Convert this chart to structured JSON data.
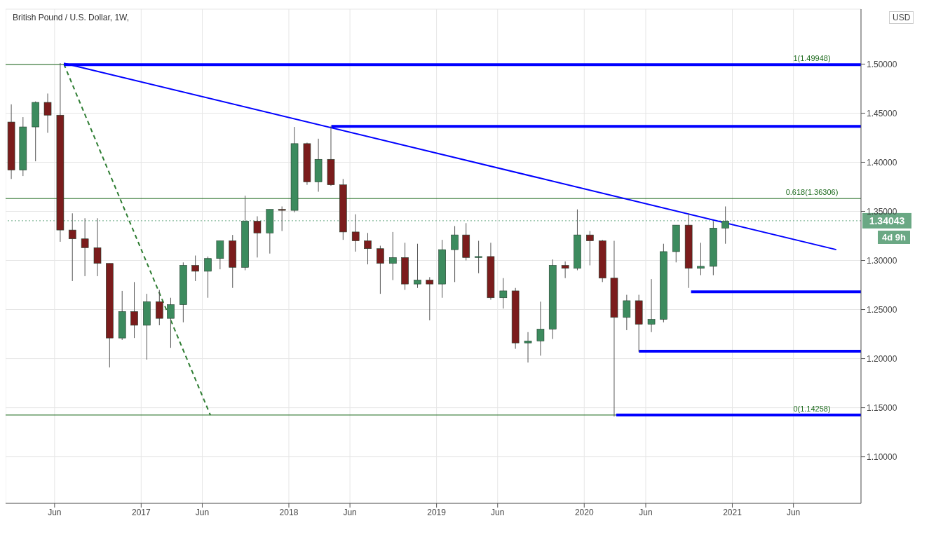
{
  "chart_data": {
    "type": "candlestick",
    "title": "British Pound / U.S. Dollar, 1W,",
    "ylabel": "USD",
    "x": [
      "2016-02-15",
      "2016-03-15",
      "2016-04-15",
      "2016-05-15",
      "2016-06-15",
      "2016-07-15",
      "2016-08-15",
      "2016-09-15",
      "2016-10-15",
      "2016-11-15",
      "2016-12-15",
      "2017-01-15",
      "2017-02-15",
      "2017-03-15",
      "2017-04-15",
      "2017-05-15",
      "2017-06-15",
      "2017-07-15",
      "2017-08-15",
      "2017-09-15",
      "2017-10-15",
      "2017-11-15",
      "2017-12-15",
      "2018-01-15",
      "2018-02-15",
      "2018-03-15",
      "2018-04-15",
      "2018-05-15",
      "2018-06-15",
      "2018-07-15",
      "2018-08-15",
      "2018-09-15",
      "2018-10-15",
      "2018-11-15",
      "2018-12-15",
      "2019-01-15",
      "2019-02-15",
      "2019-03-15",
      "2019-04-15",
      "2019-05-15",
      "2019-06-15",
      "2019-07-15",
      "2019-08-15",
      "2019-09-15",
      "2019-10-15",
      "2019-11-15",
      "2019-12-15",
      "2020-01-15",
      "2020-02-15",
      "2020-03-15",
      "2020-04-15",
      "2020-05-15",
      "2020-06-15",
      "2020-07-15",
      "2020-08-15",
      "2020-09-15",
      "2020-10-15",
      "2020-11-15",
      "2020-12-15"
    ],
    "ohlc": [
      [
        1.441,
        1.459,
        1.383,
        1.392
      ],
      [
        1.392,
        1.446,
        1.386,
        1.436
      ],
      [
        1.436,
        1.462,
        1.401,
        1.461
      ],
      [
        1.461,
        1.47,
        1.43,
        1.448
      ],
      [
        1.448,
        1.501,
        1.319,
        1.331
      ],
      [
        1.331,
        1.348,
        1.279,
        1.322
      ],
      [
        1.322,
        1.343,
        1.284,
        1.313
      ],
      [
        1.313,
        1.343,
        1.284,
        1.297
      ],
      [
        1.297,
        1.297,
        1.191,
        1.221
      ],
      [
        1.221,
        1.269,
        1.219,
        1.248
      ],
      [
        1.248,
        1.278,
        1.221,
        1.234
      ],
      [
        1.234,
        1.266,
        1.199,
        1.258
      ],
      [
        1.258,
        1.27,
        1.234,
        1.241
      ],
      [
        1.241,
        1.262,
        1.211,
        1.255
      ],
      [
        1.255,
        1.298,
        1.237,
        1.295
      ],
      [
        1.295,
        1.305,
        1.279,
        1.289
      ],
      [
        1.289,
        1.304,
        1.262,
        1.302
      ],
      [
        1.302,
        1.32,
        1.291,
        1.32
      ],
      [
        1.32,
        1.326,
        1.272,
        1.293
      ],
      [
        1.293,
        1.366,
        1.29,
        1.34
      ],
      [
        1.34,
        1.345,
        1.303,
        1.328
      ],
      [
        1.328,
        1.352,
        1.307,
        1.352
      ],
      [
        1.352,
        1.355,
        1.33,
        1.351
      ],
      [
        1.351,
        1.436,
        1.349,
        1.419
      ],
      [
        1.419,
        1.42,
        1.377,
        1.38
      ],
      [
        1.38,
        1.424,
        1.37,
        1.403
      ],
      [
        1.403,
        1.437,
        1.376,
        1.377
      ],
      [
        1.377,
        1.383,
        1.321,
        1.329
      ],
      [
        1.329,
        1.347,
        1.309,
        1.32
      ],
      [
        1.32,
        1.328,
        1.296,
        1.312
      ],
      [
        1.312,
        1.315,
        1.266,
        1.297
      ],
      [
        1.297,
        1.329,
        1.28,
        1.303
      ],
      [
        1.303,
        1.318,
        1.27,
        1.276
      ],
      [
        1.276,
        1.317,
        1.272,
        1.28
      ],
      [
        1.28,
        1.283,
        1.239,
        1.276
      ],
      [
        1.276,
        1.321,
        1.262,
        1.311
      ],
      [
        1.311,
        1.335,
        1.278,
        1.326
      ],
      [
        1.326,
        1.338,
        1.3,
        1.303
      ],
      [
        1.303,
        1.32,
        1.287,
        1.304
      ],
      [
        1.304,
        1.318,
        1.26,
        1.262
      ],
      [
        1.262,
        1.282,
        1.251,
        1.269
      ],
      [
        1.269,
        1.272,
        1.21,
        1.216
      ],
      [
        1.216,
        1.227,
        1.196,
        1.218
      ],
      [
        1.218,
        1.258,
        1.203,
        1.23
      ],
      [
        1.23,
        1.301,
        1.22,
        1.295
      ],
      [
        1.295,
        1.299,
        1.282,
        1.292
      ],
      [
        1.292,
        1.352,
        1.29,
        1.326
      ],
      [
        1.326,
        1.33,
        1.295,
        1.32
      ],
      [
        1.32,
        1.321,
        1.278,
        1.282
      ],
      [
        1.282,
        1.32,
        1.141,
        1.242
      ],
      [
        1.242,
        1.265,
        1.229,
        1.259
      ],
      [
        1.259,
        1.265,
        1.207,
        1.235
      ],
      [
        1.235,
        1.281,
        1.227,
        1.24
      ],
      [
        1.24,
        1.317,
        1.237,
        1.309
      ],
      [
        1.309,
        1.336,
        1.298,
        1.336
      ],
      [
        1.336,
        1.348,
        1.272,
        1.292
      ],
      [
        1.292,
        1.318,
        1.285,
        1.294
      ],
      [
        1.294,
        1.34,
        1.285,
        1.333
      ],
      [
        1.333,
        1.355,
        1.317,
        1.34
      ]
    ],
    "colors": [
      "#7b1c1c",
      "#3c8b5e",
      "#3c8b5e",
      "#7b1c1c",
      "#7b1c1c",
      "#7b1c1c",
      "#7b1c1c",
      "#7b1c1c",
      "#7b1c1c",
      "#3c8b5e",
      "#7b1c1c",
      "#3c8b5e",
      "#7b1c1c",
      "#3c8b5e",
      "#3c8b5e",
      "#7b1c1c",
      "#3c8b5e",
      "#3c8b5e",
      "#7b1c1c",
      "#3c8b5e",
      "#7b1c1c",
      "#3c8b5e",
      "#7b1c1c",
      "#3c8b5e",
      "#7b1c1c",
      "#3c8b5e",
      "#7b1c1c",
      "#7b1c1c",
      "#7b1c1c",
      "#7b1c1c",
      "#7b1c1c",
      "#3c8b5e",
      "#7b1c1c",
      "#3c8b5e",
      "#7b1c1c",
      "#3c8b5e",
      "#3c8b5e",
      "#7b1c1c",
      "#3c8b5e",
      "#7b1c1c",
      "#3c8b5e",
      "#7b1c1c",
      "#3c8b5e",
      "#3c8b5e",
      "#3c8b5e",
      "#7b1c1c",
      "#3c8b5e",
      "#7b1c1c",
      "#7b1c1c",
      "#7b1c1c",
      "#3c8b5e",
      "#7b1c1c",
      "#3c8b5e",
      "#3c8b5e",
      "#3c8b5e",
      "#7b1c1c",
      "#3c8b5e",
      "#3c8b5e",
      "#3c8b5e"
    ],
    "series": [
      {
        "type": "line",
        "x": [
          "2016-06-24",
          "2021-09-15"
        ],
        "values": [
          1.5009,
          1.311
        ],
        "color": "#0000ff",
        "line_style": "solid"
      },
      {
        "type": "line",
        "x": [
          "2016-06-24",
          "2017-06-21"
        ],
        "values": [
          1.5,
          1.1425
        ],
        "color": "#2e7d32",
        "line_style": "dashed"
      },
      {
        "type": "line",
        "x": [
          "2016-06-24",
          "2021-11-15"
        ],
        "values": [
          1.4995,
          1.4995
        ],
        "color": "#0000ff",
        "line_style": "solid"
      },
      {
        "type": "line",
        "x": [
          "2018-04-16",
          "2021-11-15"
        ],
        "values": [
          1.4365,
          1.4365
        ],
        "color": "#0000ff",
        "line_style": "solid"
      },
      {
        "type": "line",
        "x": [
          "2020-09-21",
          "2021-11-15"
        ],
        "values": [
          1.268,
          1.268
        ],
        "color": "#0000ff",
        "line_style": "solid"
      },
      {
        "type": "line",
        "x": [
          "2020-05-15",
          "2021-11-15"
        ],
        "values": [
          1.2075,
          1.2075
        ],
        "color": "#0000ff",
        "line_style": "solid"
      },
      {
        "type": "line",
        "x": [
          "2020-03-20",
          "2021-11-15"
        ],
        "values": [
          1.1425,
          1.1425
        ],
        "color": "#0000ff",
        "line_style": "solid"
      }
    ],
    "ref_lines": [
      {
        "axis": "y",
        "value": 1.49948,
        "label": "1(1.49948)",
        "color": "#1e6b1e",
        "line_style": "solid"
      },
      {
        "axis": "y",
        "value": 1.36306,
        "label": "0.618(1.36306)",
        "color": "#1e6b1e",
        "line_style": "solid"
      },
      {
        "axis": "y",
        "value": 1.14258,
        "label": "0(1.14258)",
        "color": "#1e6b1e",
        "line_style": "solid"
      },
      {
        "axis": "y",
        "value": 1.34043,
        "label": "1.34043",
        "color": "#6aa884",
        "line_style": "dotted"
      }
    ],
    "annotations": [
      "4d 9h"
    ],
    "xlim": [
      "2016-02-01",
      "2021-11-15"
    ],
    "xticks": [
      {
        "value": "2016-06-01",
        "label": "Jun"
      },
      {
        "value": "2017-01-01",
        "label": "2017"
      },
      {
        "value": "2017-06-01",
        "label": "Jun"
      },
      {
        "value": "2018-01-01",
        "label": "2018"
      },
      {
        "value": "2018-06-01",
        "label": "Jun"
      },
      {
        "value": "2019-01-01",
        "label": "2019"
      },
      {
        "value": "2019-06-01",
        "label": "Jun"
      },
      {
        "value": "2020-01-01",
        "label": "2020"
      },
      {
        "value": "2020-06-01",
        "label": "Jun"
      },
      {
        "value": "2021-01-01",
        "label": "2021"
      },
      {
        "value": "2021-06-01",
        "label": "Jun"
      }
    ],
    "ylim": [
      1.0526,
      1.556
    ],
    "yticks": [
      {
        "value": 1.1,
        "label": "1.10000"
      },
      {
        "value": 1.15,
        "label": "1.15000"
      },
      {
        "value": 1.2,
        "label": "1.20000"
      },
      {
        "value": 1.25,
        "label": "1.25000"
      },
      {
        "value": 1.3,
        "label": "1.30000"
      },
      {
        "value": 1.35,
        "label": "1.35000"
      },
      {
        "value": 1.4,
        "label": "1.40000"
      },
      {
        "value": 1.45,
        "label": "1.45000"
      },
      {
        "value": 1.5,
        "label": "1.50000"
      }
    ],
    "grid": true
  }
}
